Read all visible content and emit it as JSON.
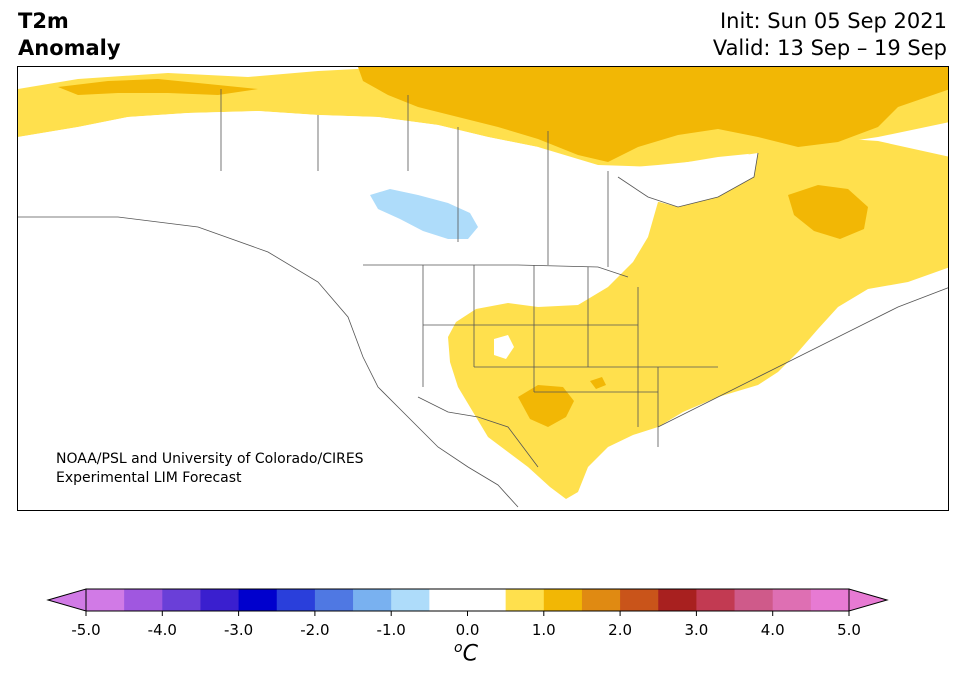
{
  "header": {
    "title_line1": "T2m",
    "title_line2": "Anomaly",
    "init": "Init: Sun 05 Sep 2021",
    "valid": "Valid: 13 Sep – 19 Sep"
  },
  "map": {
    "credit_line1": "NOAA/PSL and University of Colorado/CIRES",
    "credit_line2": "Experimental LIM Forecast",
    "colors": {
      "land_outline": "#555555",
      "anom_0_5_1": "#ffe04d",
      "anom_1_1_5": "#f2b705",
      "anom_neg_0_5_1": "#aedcfa"
    }
  },
  "colorbar": {
    "unit_symbol": "o",
    "unit_letter": "C",
    "ticks": [
      "-5.0",
      "-4.0",
      "-3.0",
      "-2.0",
      "-1.0",
      "0.0",
      "1.0",
      "2.0",
      "3.0",
      "4.0",
      "5.0"
    ],
    "colors": [
      "#d17ae6",
      "#a057e0",
      "#6a3fd8",
      "#3a1fcf",
      "#0000cd",
      "#2a3fdb",
      "#4f78e3",
      "#79b1f0",
      "#aedcfa",
      "#ffffff",
      "#ffffff",
      "#ffe04d",
      "#f2b705",
      "#e08a12",
      "#c9541a",
      "#a8201f",
      "#c23a52",
      "#cf5a8a",
      "#de6fb3",
      "#e77ad3"
    ],
    "left_extend_color": "#d17ae6",
    "right_extend_color": "#e77ad3"
  }
}
